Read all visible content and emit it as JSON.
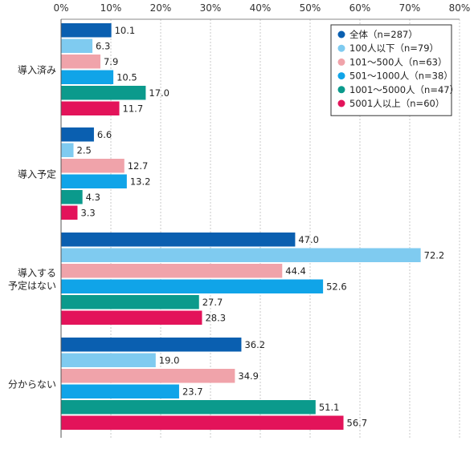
{
  "chart_data": {
    "type": "bar",
    "orientation": "horizontal",
    "xlim": [
      0,
      80
    ],
    "x_ticks": [
      "0%",
      "10%",
      "20%",
      "30%",
      "40%",
      "50%",
      "60%",
      "70%",
      "80%"
    ],
    "x_tick_values": [
      0,
      10,
      20,
      30,
      40,
      50,
      60,
      70,
      80
    ],
    "grid": true,
    "legend_position": "top-right",
    "categories": [
      [
        "導入済み"
      ],
      [
        "導入予定"
      ],
      [
        "導入する",
        "予定はない"
      ],
      [
        "分からない"
      ]
    ],
    "series": [
      {
        "name": "全体（n=287）",
        "color": "#0a5fb0",
        "values": [
          10.1,
          6.6,
          47.0,
          36.2
        ],
        "labels": [
          "10.1",
          "6.6",
          "47.0",
          "36.2"
        ]
      },
      {
        "name": "100人以下（n=79）",
        "color": "#7fcbf0",
        "values": [
          6.3,
          2.5,
          72.2,
          19.0
        ],
        "labels": [
          "6.3",
          "2.5",
          "72.2",
          "19.0"
        ]
      },
      {
        "name": "101〜500人（n=63）",
        "color": "#f0a3aa",
        "values": [
          7.9,
          12.7,
          44.4,
          34.9
        ],
        "labels": [
          "7.9",
          "12.7",
          "44.4",
          "34.9"
        ]
      },
      {
        "name": "501〜1000人（n=38）",
        "color": "#10a4e8",
        "values": [
          10.5,
          13.2,
          52.6,
          23.7
        ],
        "labels": [
          "10.5",
          "13.2",
          "52.6",
          "23.7"
        ]
      },
      {
        "name": "1001〜5000人（n=47）",
        "color": "#0b9a8c",
        "values": [
          17.0,
          4.3,
          27.7,
          51.1
        ],
        "labels": [
          "17.0",
          "4.3",
          "27.7",
          "51.1"
        ]
      },
      {
        "name": "5001人以上（n=60）",
        "color": "#e3135a",
        "values": [
          11.7,
          3.3,
          28.3,
          56.7
        ],
        "labels": [
          "11.7",
          "3.3",
          "28.3",
          "56.7"
        ]
      }
    ]
  }
}
